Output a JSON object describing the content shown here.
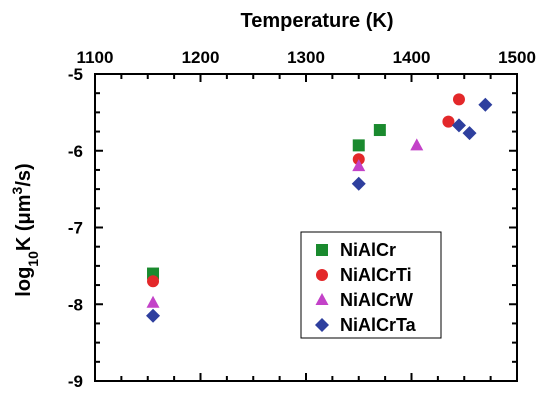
{
  "chart_data": {
    "type": "scatter",
    "title": "",
    "xlabel": "Temperature (K)",
    "ylabel_parts": {
      "prefix": "log",
      "sub": "10",
      "mid": "K (μm",
      "sup": "3",
      "suffix": "/s)"
    },
    "xlim": [
      1100,
      1500
    ],
    "ylim": [
      -9,
      -5
    ],
    "x_axis_position": "top",
    "x_ticks": [
      1100,
      1200,
      1300,
      1400,
      1500
    ],
    "y_ticks": [
      -5,
      -6,
      -7,
      -8,
      -9
    ],
    "x_tick_labels": [
      "1100",
      "1200",
      "1300",
      "1400",
      "1500"
    ],
    "y_tick_labels": [
      "-5",
      "-6",
      "-7",
      "-8",
      "-9"
    ],
    "grid": false,
    "legend_position": "lower-right",
    "series": [
      {
        "name": "NiAlCr",
        "marker": "square",
        "color": "#1a8a2e",
        "points": [
          [
            1155,
            -7.6
          ],
          [
            1350,
            -5.93
          ],
          [
            1370,
            -5.73
          ]
        ]
      },
      {
        "name": "NiAlCrTi",
        "marker": "circle",
        "color": "#e3282a",
        "points": [
          [
            1155,
            -7.7
          ],
          [
            1350,
            -6.11
          ],
          [
            1435,
            -5.62
          ],
          [
            1445,
            -5.33
          ]
        ]
      },
      {
        "name": "NiAlCrW",
        "marker": "triangle",
        "color": "#c342c8",
        "points": [
          [
            1155,
            -7.98
          ],
          [
            1350,
            -6.2
          ],
          [
            1405,
            -5.93
          ]
        ]
      },
      {
        "name": "NiAlCrTa",
        "marker": "diamond",
        "color": "#2e3f9e",
        "points": [
          [
            1155,
            -8.15
          ],
          [
            1350,
            -6.43
          ],
          [
            1445,
            -5.67
          ],
          [
            1455,
            -5.77
          ],
          [
            1470,
            -5.4
          ]
        ]
      }
    ]
  }
}
